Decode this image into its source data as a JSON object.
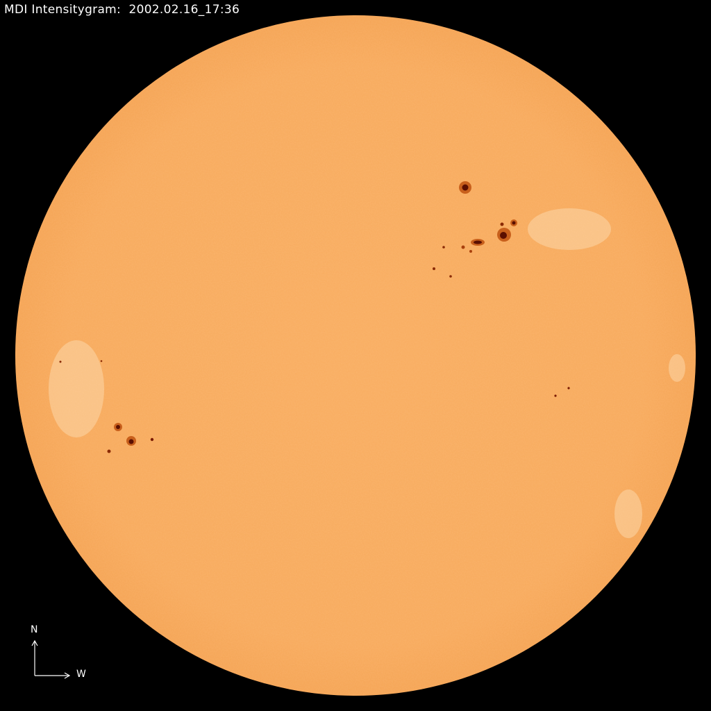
{
  "title": "MDI Intensitygram:  2002.02.16_17:36",
  "compass": {
    "north": "N",
    "west": "W"
  },
  "colors": {
    "background": "#000000",
    "disk": "#f8ab5e",
    "sunspot_umbra": "#5a0f00",
    "sunspot_penumbra": "#c8601c",
    "text": "#ffffff"
  }
}
